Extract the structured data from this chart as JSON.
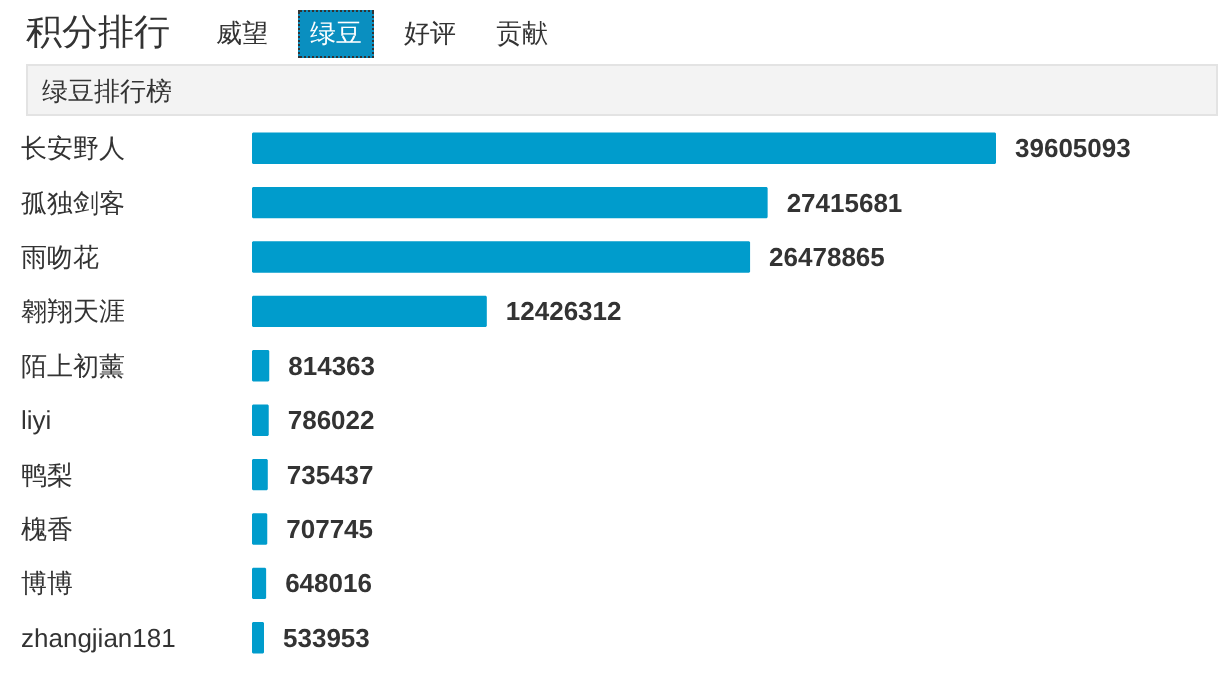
{
  "chart_data": {
    "type": "bar",
    "orientation": "horizontal",
    "title": "积分排行",
    "subtitle": "绿豆排行榜",
    "annotations": [
      "威望",
      "绿豆",
      "好评",
      "贡献"
    ],
    "categories": [
      "长安野人",
      "孤独剑客",
      "雨吻花",
      "翱翔天涯",
      "陌上初薰",
      "liyi",
      "鸭梨",
      "槐香",
      "博博",
      "zhangjian181"
    ],
    "values": [
      39605093,
      27415681,
      26478865,
      12426312,
      814363,
      786022,
      735437,
      707745,
      648016,
      533953
    ],
    "color": "#009ccc",
    "data_labels": true
  }
}
